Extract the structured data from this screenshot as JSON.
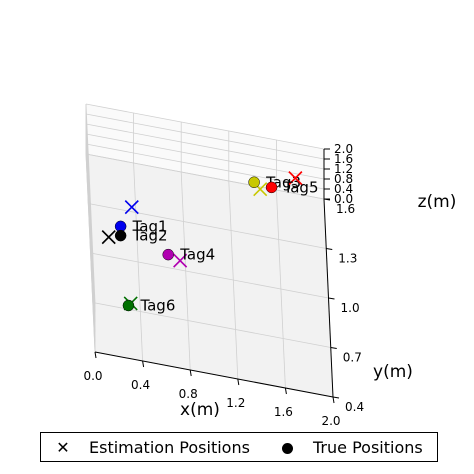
{
  "chart_data": {
    "type": "scatter3d",
    "axes": {
      "x": {
        "label": "x(m)",
        "range": [
          0.0,
          2.0
        ],
        "ticks": [
          "0.0",
          "0.4",
          "0.8",
          "1.2",
          "1.6",
          "2.0"
        ]
      },
      "y": {
        "label": "y(m)",
        "range": [
          0.4,
          1.6
        ],
        "ticks": [
          "0.4",
          "0.7",
          "1.0",
          "1.3",
          "1.6"
        ]
      },
      "z": {
        "label": "z(m)",
        "range": [
          0.0,
          2.0
        ],
        "ticks": [
          "0.0",
          "0.4",
          "0.8",
          "1.2",
          "1.6",
          "2.0"
        ]
      }
    },
    "grid": true,
    "legend": {
      "position": "bottom",
      "entries": [
        {
          "label": "Estimation Positions",
          "marker": "x"
        },
        {
          "label": "True Positions",
          "marker": "circle"
        }
      ]
    },
    "tags": [
      {
        "label": "Tag1",
        "color": "#0000ee",
        "true_pos": [
          0.25,
          0.95,
          1.62
        ],
        "est_pos": [
          0.35,
          1.05,
          1.82
        ]
      },
      {
        "label": "Tag2",
        "color": "#000000",
        "true_pos": [
          0.25,
          0.95,
          1.25
        ],
        "est_pos": [
          0.15,
          0.95,
          1.1
        ]
      },
      {
        "label": "Tag3",
        "color": "#c8c800",
        "true_pos": [
          1.4,
          1.4,
          1.45
        ],
        "est_pos": [
          1.45,
          1.38,
          1.35
        ]
      },
      {
        "label": "Tag4",
        "color": "#b000b0",
        "true_pos": [
          0.65,
          0.95,
          0.85
        ],
        "est_pos": [
          0.75,
          0.95,
          0.7
        ]
      },
      {
        "label": "Tag5",
        "color": "#ff0000",
        "true_pos": [
          1.55,
          1.45,
          1.05
        ],
        "est_pos": [
          1.75,
          1.45,
          1.6
        ]
      },
      {
        "label": "Tag6",
        "color": "#007000",
        "true_pos": [
          0.3,
          0.7,
          0.15
        ],
        "est_pos": [
          0.32,
          0.72,
          0.12
        ]
      }
    ]
  }
}
